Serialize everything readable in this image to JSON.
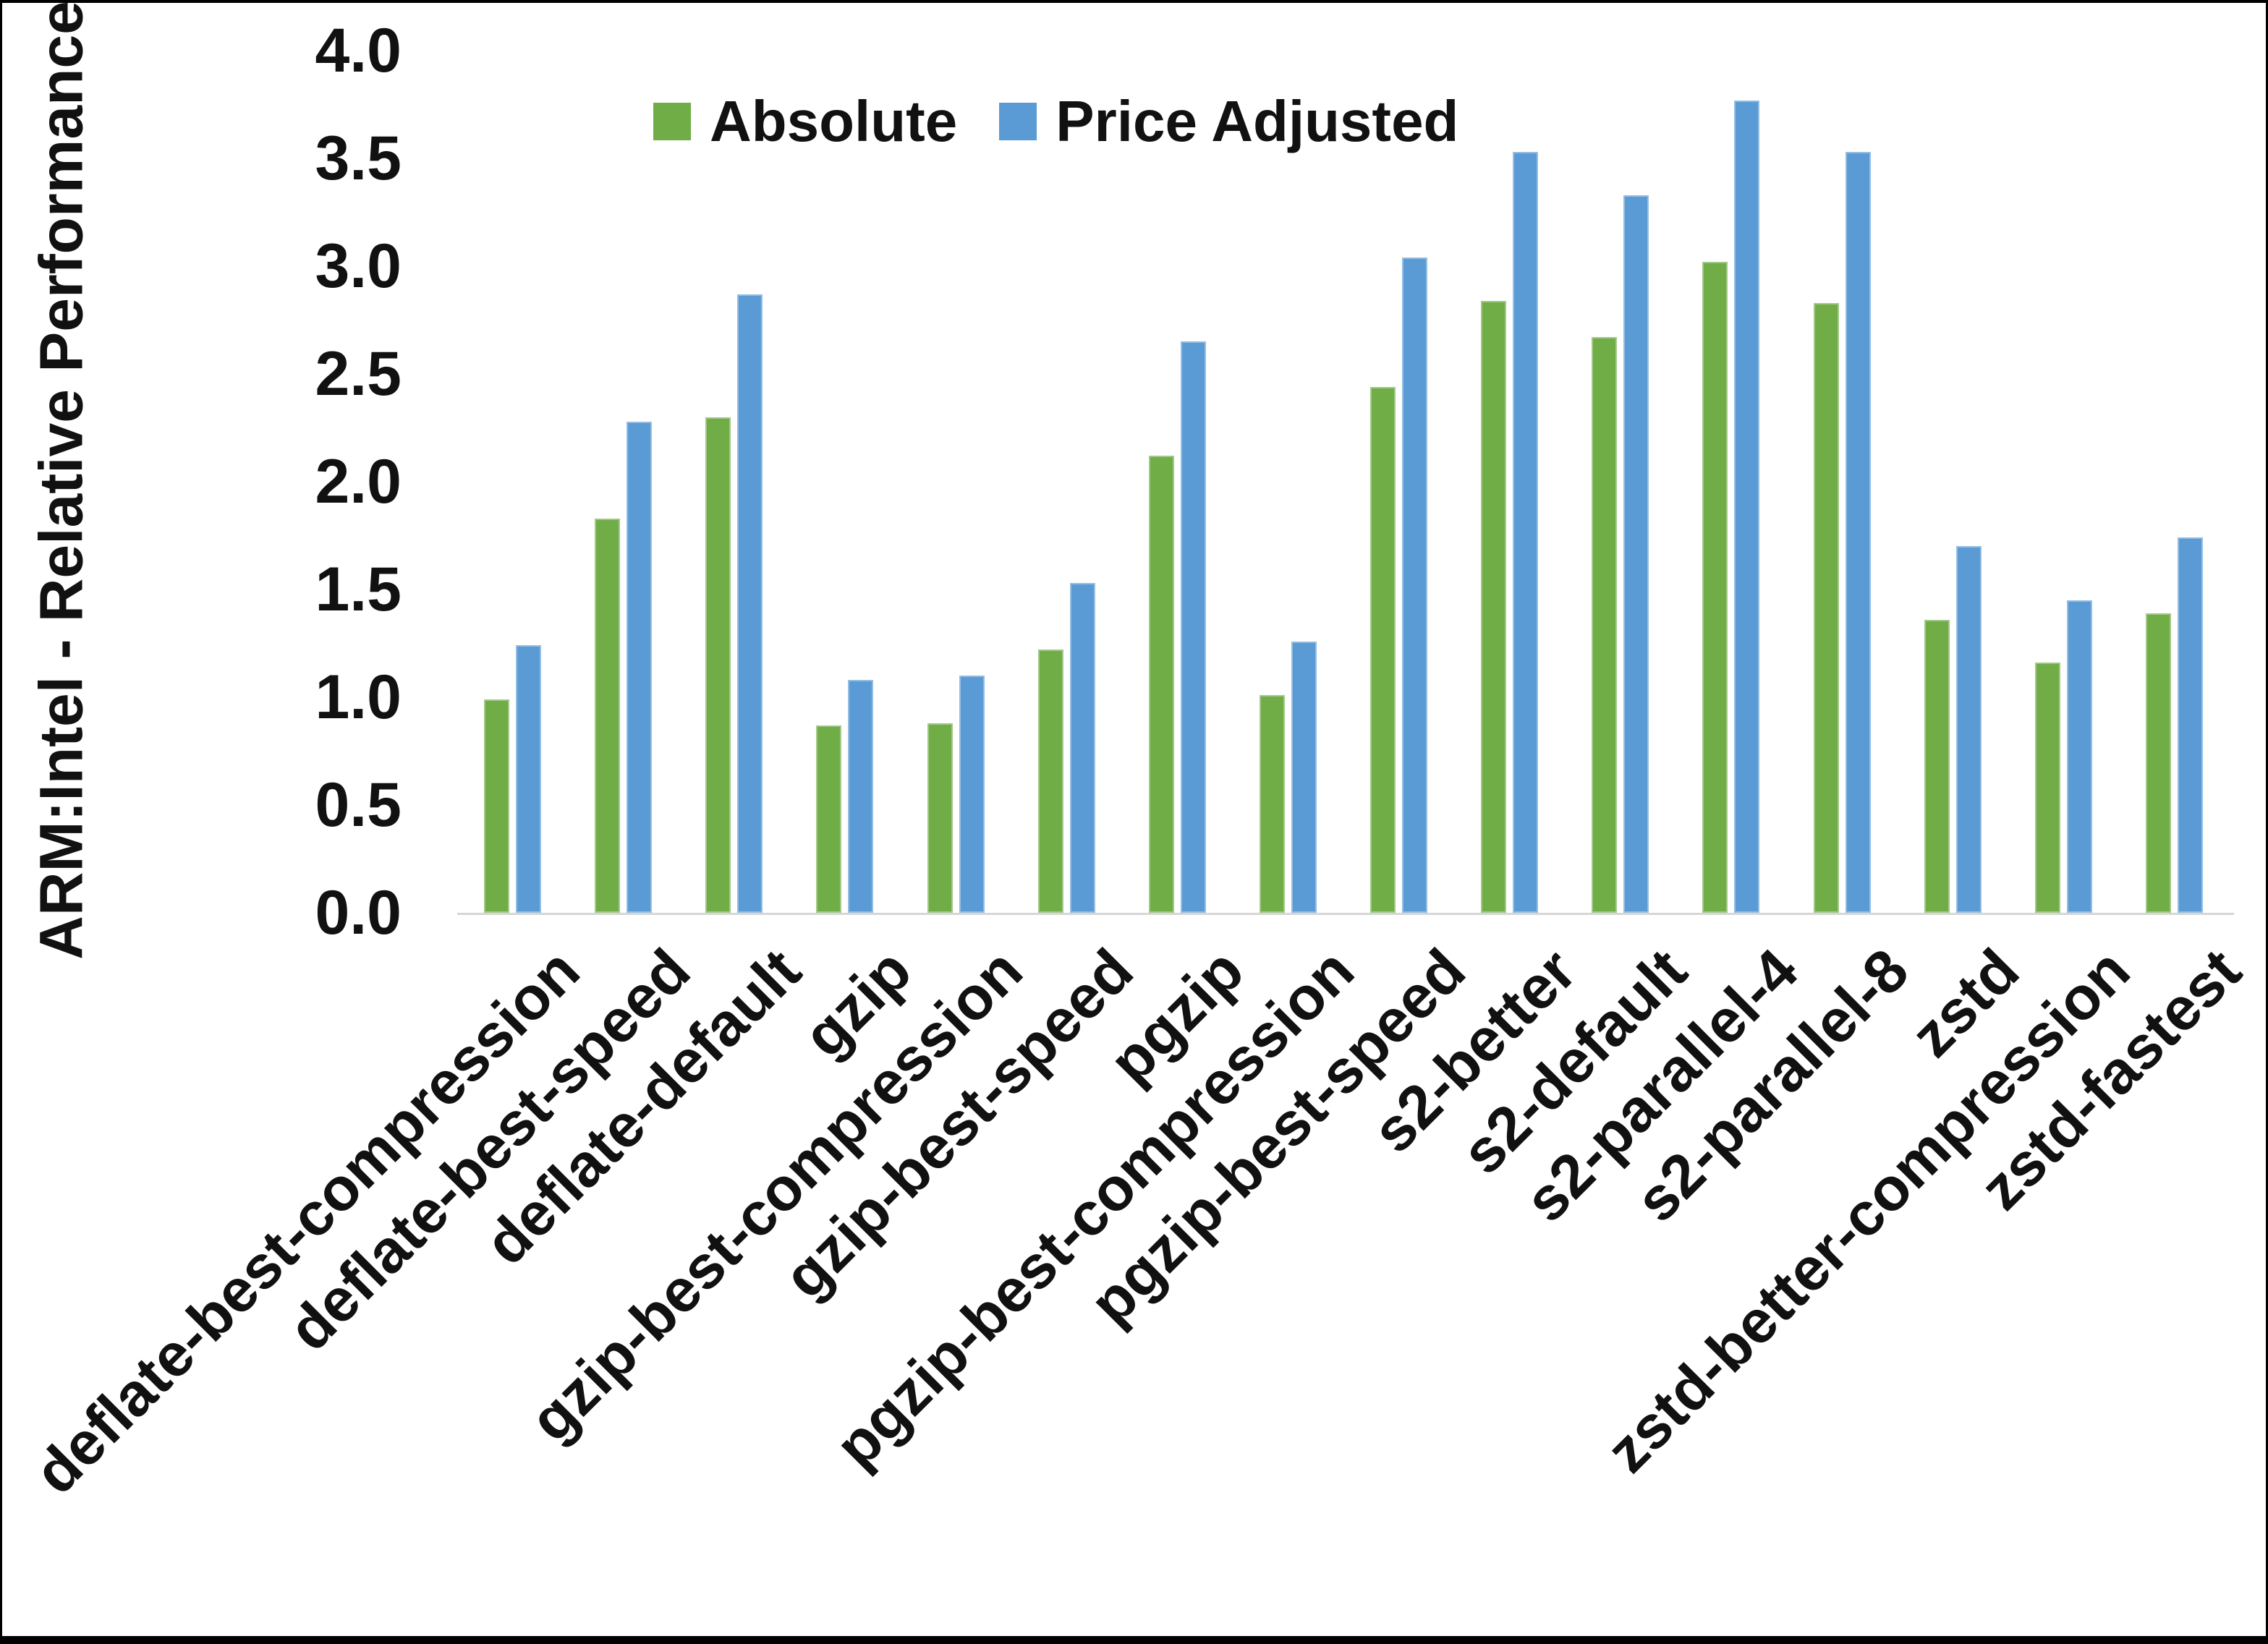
{
  "chart_data": {
    "type": "bar",
    "title": "",
    "xlabel": "",
    "ylabel": "ARM:Intel - Relative Performance",
    "ylim": [
      0.0,
      4.0
    ],
    "ytick_step": 0.5,
    "ytick_labels": [
      "0.0",
      "0.5",
      "1.0",
      "1.5",
      "2.0",
      "2.5",
      "3.0",
      "3.5",
      "4.0"
    ],
    "grid": false,
    "legend_position": "top-center",
    "categories": [
      "deflate-best-compression",
      "deflate-best-speed",
      "deflate-default",
      "gzip",
      "gzip-best-compression",
      "gzip-best-speed",
      "pgzip",
      "pgzip-best-compression",
      "pgzip-best-speed",
      "s2-better",
      "s2-default",
      "s2-parallel-4",
      "s2-parallel-8",
      "zstd",
      "zstd-better-compression",
      "zstd-fastest"
    ],
    "series": [
      {
        "name": "Absolute",
        "color": "#70AD47",
        "values": [
          0.99,
          1.83,
          2.3,
          0.87,
          0.88,
          1.22,
          2.12,
          1.01,
          2.44,
          2.84,
          2.67,
          3.02,
          2.83,
          1.36,
          1.16,
          1.39
        ]
      },
      {
        "name": "Price Adjusted",
        "color": "#5B9BD5",
        "values": [
          1.24,
          2.28,
          2.87,
          1.08,
          1.1,
          1.53,
          2.65,
          1.26,
          3.04,
          3.53,
          3.33,
          3.77,
          3.53,
          1.7,
          1.45,
          1.74
        ]
      }
    ],
    "colors": {
      "absolute": "#70AD47",
      "price_adjusted": "#5B9BD5",
      "axis_line": "#D6D6D6",
      "text": "#111111"
    }
  }
}
